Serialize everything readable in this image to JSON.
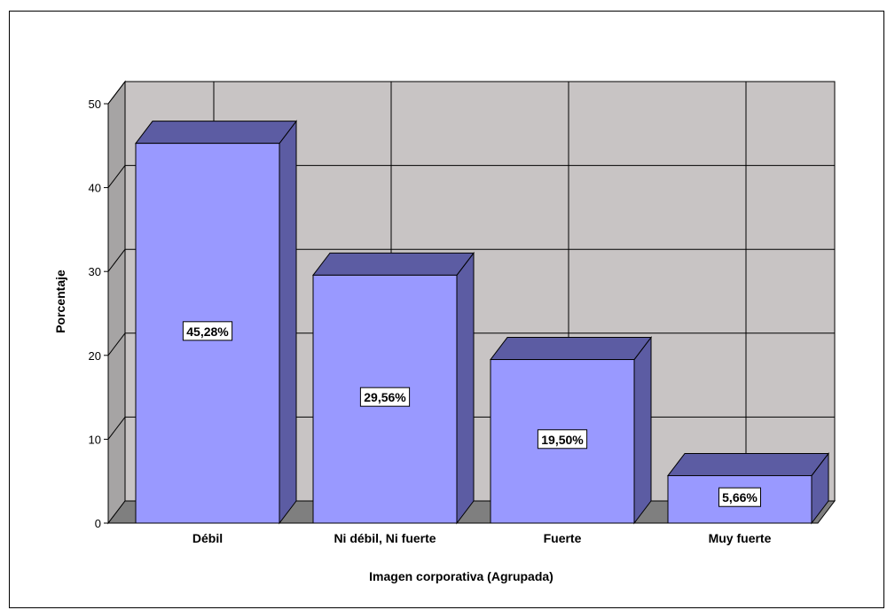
{
  "chart_data": {
    "type": "bar",
    "title": "",
    "xlabel": "Imagen corporativa (Agrupada)",
    "ylabel": "Porcentaje",
    "categories": [
      "Débil",
      "Ni débil, Ni fuerte",
      "Fuerte",
      "Muy fuerte"
    ],
    "values": [
      45.28,
      29.56,
      19.5,
      5.66
    ],
    "data_labels": [
      "45,28%",
      "29,56%",
      "19,50%",
      "5,66%"
    ],
    "ylim": [
      0,
      50
    ],
    "yticks": [
      "0",
      "10",
      "20",
      "30",
      "40",
      "50"
    ],
    "grid": true,
    "three_d": true,
    "colors": {
      "bar_front": "#9999ff",
      "bar_top": "#5c5ca3",
      "bar_side": "#5c5ca3",
      "wall": "#c8c4c4",
      "side_wall": "#a6a4a4",
      "floor": "#7f7f7f"
    }
  }
}
